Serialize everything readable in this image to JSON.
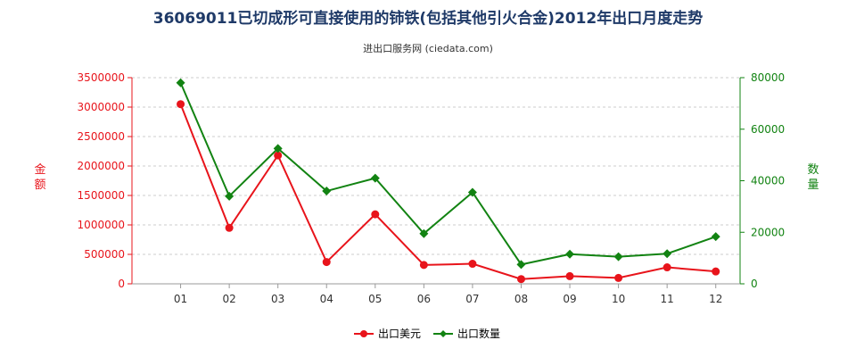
{
  "title": "36069011已切成形可直接使用的铈铁(包括其他引火合金)2012年出口月度走势",
  "subtitle": "进出口服务网 (ciedata.com)",
  "chart_data": {
    "type": "line",
    "title": "36069011已切成形可直接使用的铈铁(包括其他引火合金)2012年出口月度走势",
    "subtitle": "进出口服务网 (ciedata.com)",
    "categories": [
      "01",
      "02",
      "03",
      "04",
      "05",
      "06",
      "07",
      "08",
      "09",
      "10",
      "11",
      "12"
    ],
    "y_left": {
      "label": "金额",
      "ylim": [
        0,
        3500000
      ],
      "ticks": [
        "0",
        "500000",
        "1000000",
        "1500000",
        "2000000",
        "2500000",
        "3000000",
        "3500000"
      ],
      "color": "#e8141b"
    },
    "y_right": {
      "label": "数量",
      "ylim": [
        0,
        80000
      ],
      "ticks": [
        "0",
        "20000",
        "40000",
        "60000",
        "80000"
      ],
      "color": "#128312"
    },
    "series": [
      {
        "name": "出口美元",
        "axis": "left",
        "color": "#e8141b",
        "values": [
          3050000,
          950000,
          2180000,
          370000,
          1180000,
          320000,
          340000,
          80000,
          130000,
          100000,
          280000,
          210000
        ]
      },
      {
        "name": "出口数量",
        "axis": "right",
        "color": "#128312",
        "values": [
          78000,
          34000,
          52500,
          36000,
          41000,
          19500,
          35500,
          7500,
          11500,
          10500,
          11700,
          18300
        ]
      }
    ],
    "grid": "horizontal dashed",
    "legend": "bottom-center"
  }
}
